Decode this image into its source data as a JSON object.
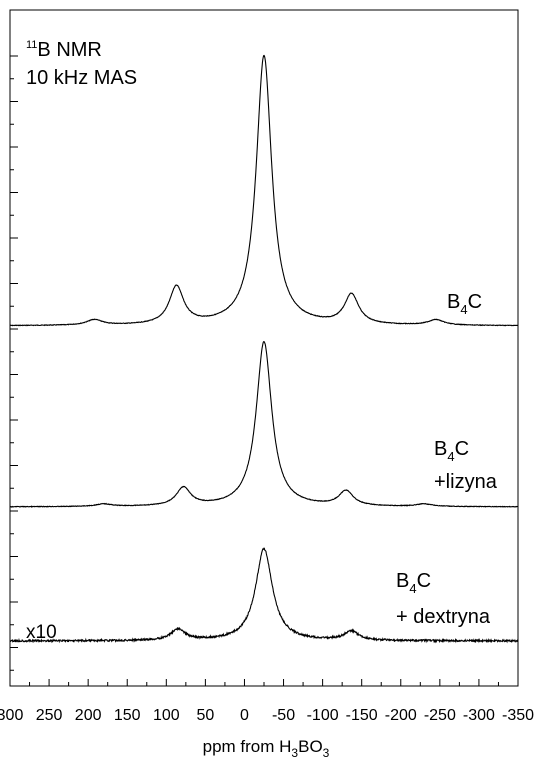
{
  "chart_data": {
    "type": "line",
    "title_line1_sup": "11",
    "title_line1_rest": "B NMR",
    "title_line2": "10 kHz MAS",
    "xlabel_prefix": "ppm from H",
    "xlabel_sub1": "3",
    "xlabel_mid": "BO",
    "xlabel_sub2": "3",
    "xlim": [
      300,
      -350
    ],
    "x_ticks": [
      "300",
      "250",
      "200",
      "150",
      "100",
      "50",
      "0",
      "-50",
      "-100",
      "-150",
      "-200",
      "-250",
      "-300",
      "-350"
    ],
    "x_tick_values": [
      300,
      250,
      200,
      150,
      100,
      50,
      0,
      -50,
      -100,
      -150,
      -200,
      -250,
      -300,
      -350
    ],
    "grid": false,
    "series": [
      {
        "label_main": "B",
        "label_sub": "4",
        "label_end": "C",
        "label_line2": "",
        "multiplier": "",
        "peaks": [
          {
            "center": -25,
            "height": 1.0,
            "width": 12
          },
          {
            "center": 87,
            "height": 0.14,
            "width": 11
          },
          {
            "center": -137,
            "height": 0.11,
            "width": 11
          },
          {
            "center": 192,
            "height": 0.02,
            "width": 12
          },
          {
            "center": -245,
            "height": 0.02,
            "width": 12
          }
        ]
      },
      {
        "label_main": "B",
        "label_sub": "4",
        "label_end": "C",
        "label_line2": "+lizyna",
        "multiplier": "",
        "peaks": [
          {
            "center": -25,
            "height": 1.0,
            "width": 12
          },
          {
            "center": 78,
            "height": 0.11,
            "width": 11
          },
          {
            "center": -130,
            "height": 0.09,
            "width": 11
          },
          {
            "center": 180,
            "height": 0.015,
            "width": 12
          },
          {
            "center": -230,
            "height": 0.015,
            "width": 12
          }
        ]
      },
      {
        "label_main": "B",
        "label_sub": "4",
        "label_end": "C",
        "label_line2": "+ dextryna",
        "multiplier": "x10",
        "peaks": [
          {
            "center": -25,
            "height": 1.0,
            "width": 13
          },
          {
            "center": 85,
            "height": 0.12,
            "width": 11
          },
          {
            "center": -137,
            "height": 0.1,
            "width": 11
          }
        ]
      }
    ]
  }
}
